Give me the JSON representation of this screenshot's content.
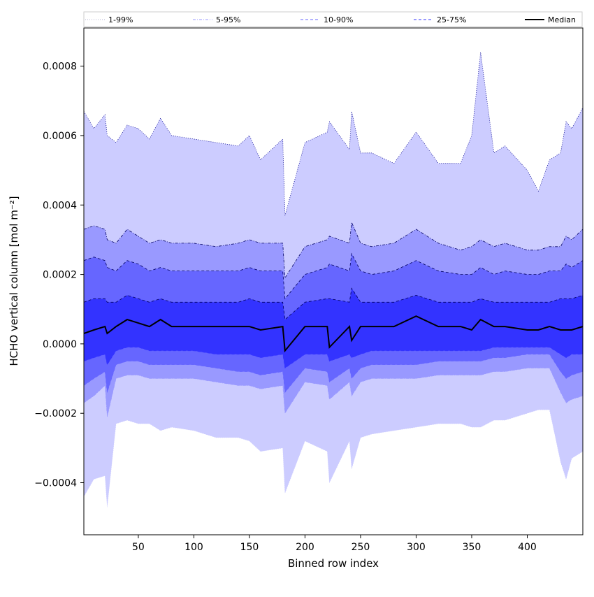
{
  "chart_data": {
    "type": "area",
    "xlabel": "Binned row index",
    "ylabel": "HCHO vertical column [mol m⁻²]",
    "xlim": [
      1,
      450
    ],
    "ylim": [
      -0.00055,
      0.00091
    ],
    "x_ticks": [
      50,
      100,
      150,
      200,
      250,
      300,
      350,
      400
    ],
    "x_tick_labels": [
      "50",
      "100",
      "150",
      "200",
      "250",
      "300",
      "350",
      "400"
    ],
    "y_ticks": [
      -0.0004,
      -0.0002,
      0.0,
      0.0002,
      0.0004,
      0.0006,
      0.0008
    ],
    "y_tick_labels": [
      "−0.0004",
      "−0.0002",
      "0.0000",
      "0.0002",
      "0.0004",
      "0.0006",
      "0.0008"
    ],
    "grid": false,
    "legend_position": "top, above plot",
    "x": [
      1,
      10,
      20,
      22,
      30,
      40,
      50,
      60,
      70,
      80,
      100,
      120,
      140,
      150,
      160,
      180,
      182,
      200,
      220,
      222,
      240,
      242,
      250,
      260,
      280,
      300,
      320,
      340,
      350,
      358,
      370,
      380,
      400,
      410,
      420,
      430,
      435,
      440,
      450
    ],
    "series": [
      {
        "name": "1-99%",
        "color": "#ccccff",
        "style": "dotted",
        "upper": [
          0.00067,
          0.00062,
          0.00066,
          0.0006,
          0.00058,
          0.00063,
          0.00062,
          0.00059,
          0.00065,
          0.0006,
          0.00059,
          0.00058,
          0.00057,
          0.0006,
          0.00053,
          0.00059,
          0.00037,
          0.00058,
          0.00061,
          0.00064,
          0.00056,
          0.00067,
          0.00055,
          0.00055,
          0.00052,
          0.00061,
          0.00052,
          0.00052,
          0.0006,
          0.00084,
          0.00055,
          0.00057,
          0.0005,
          0.00044,
          0.00053,
          0.00055,
          0.00064,
          0.00062,
          0.00068
        ],
        "lower": [
          -0.00044,
          -0.00039,
          -0.00038,
          -0.00047,
          -0.00023,
          -0.00022,
          -0.00023,
          -0.00023,
          -0.00025,
          -0.00024,
          -0.00025,
          -0.00027,
          -0.00027,
          -0.00028,
          -0.00031,
          -0.0003,
          -0.00043,
          -0.00028,
          -0.00031,
          -0.0004,
          -0.00028,
          -0.00036,
          -0.00027,
          -0.00026,
          -0.00025,
          -0.00024,
          -0.00023,
          -0.00023,
          -0.00024,
          -0.00024,
          -0.00022,
          -0.00022,
          -0.0002,
          -0.00019,
          -0.00019,
          -0.00034,
          -0.00039,
          -0.00033,
          -0.00031
        ]
      },
      {
        "name": "5-95%",
        "color": "#9999ff",
        "style": "dashdot",
        "upper": [
          0.00033,
          0.00034,
          0.00033,
          0.0003,
          0.00029,
          0.00033,
          0.00031,
          0.00029,
          0.0003,
          0.00029,
          0.00029,
          0.00028,
          0.00029,
          0.0003,
          0.00029,
          0.00029,
          0.00019,
          0.00028,
          0.0003,
          0.00031,
          0.00029,
          0.00035,
          0.00029,
          0.00028,
          0.00029,
          0.00033,
          0.00029,
          0.00027,
          0.00028,
          0.0003,
          0.00028,
          0.00029,
          0.00027,
          0.00027,
          0.00028,
          0.00028,
          0.00031,
          0.0003,
          0.00033
        ],
        "lower": [
          -0.00017,
          -0.00015,
          -0.00012,
          -0.00021,
          -0.0001,
          -9e-05,
          -9e-05,
          -0.0001,
          -0.0001,
          -0.0001,
          -0.0001,
          -0.00011,
          -0.00012,
          -0.00012,
          -0.00013,
          -0.00012,
          -0.0002,
          -0.00011,
          -0.00012,
          -0.00016,
          -0.00011,
          -0.00015,
          -0.00011,
          -0.0001,
          -0.0001,
          -0.0001,
          -9e-05,
          -9e-05,
          -9e-05,
          -9e-05,
          -8e-05,
          -8e-05,
          -7e-05,
          -7e-05,
          -7e-05,
          -0.00014,
          -0.00017,
          -0.00016,
          -0.00015
        ]
      },
      {
        "name": "10-90%",
        "color": "#6666ff",
        "style": "dashed",
        "upper": [
          0.00024,
          0.00025,
          0.00024,
          0.00022,
          0.00021,
          0.00024,
          0.00023,
          0.00021,
          0.00022,
          0.00021,
          0.00021,
          0.00021,
          0.00021,
          0.00022,
          0.00021,
          0.00021,
          0.00013,
          0.0002,
          0.00022,
          0.00023,
          0.00021,
          0.00026,
          0.00021,
          0.0002,
          0.00021,
          0.00024,
          0.00021,
          0.0002,
          0.0002,
          0.00022,
          0.0002,
          0.00021,
          0.0002,
          0.0002,
          0.00021,
          0.00021,
          0.00023,
          0.00022,
          0.00024
        ],
        "lower": [
          -0.00012,
          -0.0001,
          -8e-05,
          -0.00014,
          -6e-05,
          -5e-05,
          -5e-05,
          -6e-05,
          -6e-05,
          -6e-05,
          -6e-05,
          -7e-05,
          -8e-05,
          -8e-05,
          -9e-05,
          -8e-05,
          -0.00014,
          -7e-05,
          -8e-05,
          -0.00011,
          -7e-05,
          -0.0001,
          -7e-05,
          -6e-05,
          -6e-05,
          -6e-05,
          -5e-05,
          -5e-05,
          -5e-05,
          -5e-05,
          -4e-05,
          -4e-05,
          -3e-05,
          -3e-05,
          -3e-05,
          -8e-05,
          -0.0001,
          -9e-05,
          -8e-05
        ]
      },
      {
        "name": "25-75%",
        "color": "#3333ff",
        "style": "dashed",
        "upper": [
          0.00012,
          0.00013,
          0.00013,
          0.00012,
          0.00012,
          0.00014,
          0.00013,
          0.00012,
          0.00013,
          0.00012,
          0.00012,
          0.00012,
          0.00012,
          0.00013,
          0.00012,
          0.00012,
          7e-05,
          0.00012,
          0.00013,
          0.00013,
          0.00012,
          0.00016,
          0.00012,
          0.00012,
          0.00012,
          0.00014,
          0.00012,
          0.00012,
          0.00012,
          0.00013,
          0.00012,
          0.00012,
          0.00012,
          0.00012,
          0.00012,
          0.00013,
          0.00013,
          0.00013,
          0.00014
        ],
        "lower": [
          -5e-05,
          -4e-05,
          -3e-05,
          -6e-05,
          -2e-05,
          -1e-05,
          -1e-05,
          -2e-05,
          -2e-05,
          -2e-05,
          -2e-05,
          -3e-05,
          -3e-05,
          -3e-05,
          -4e-05,
          -3e-05,
          -7e-05,
          -3e-05,
          -3e-05,
          -5e-05,
          -3e-05,
          -4e-05,
          -3e-05,
          -2e-05,
          -2e-05,
          -2e-05,
          -2e-05,
          -2e-05,
          -2e-05,
          -2e-05,
          -1e-05,
          -1e-05,
          -1e-05,
          -1e-05,
          -1e-05,
          -3e-05,
          -4e-05,
          -3e-05,
          -3e-05
        ]
      },
      {
        "name": "Median",
        "color": "#000000",
        "style": "solid",
        "values": [
          3e-05,
          4e-05,
          5e-05,
          3e-05,
          5e-05,
          7e-05,
          6e-05,
          5e-05,
          7e-05,
          5e-05,
          5e-05,
          5e-05,
          5e-05,
          5e-05,
          4e-05,
          5e-05,
          -2e-05,
          5e-05,
          5e-05,
          -1e-05,
          5e-05,
          1e-05,
          5e-05,
          5e-05,
          5e-05,
          8e-05,
          5e-05,
          5e-05,
          4e-05,
          7e-05,
          5e-05,
          5e-05,
          4e-05,
          4e-05,
          5e-05,
          4e-05,
          4e-05,
          4e-05,
          5e-05
        ]
      }
    ]
  }
}
